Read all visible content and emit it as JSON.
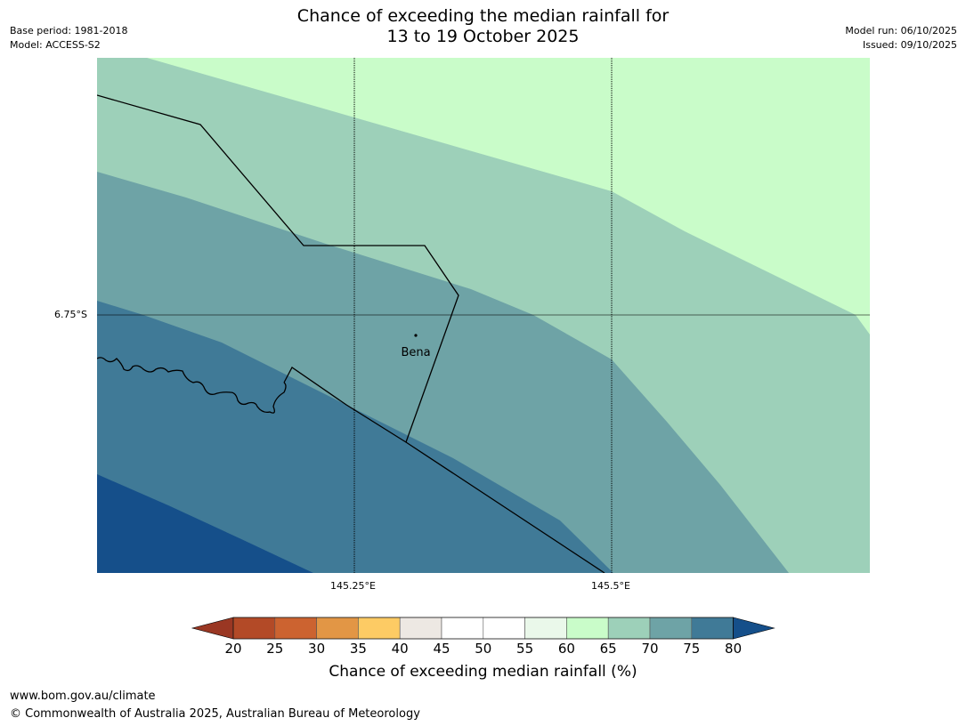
{
  "title": {
    "line1": "Chance of exceeding the median rainfall for",
    "line2": "13 to 19 October 2025"
  },
  "meta": {
    "base_period": "Base period: 1981-2018",
    "model": "Model: ACCESS-S2",
    "model_run": "Model run: 06/10/2025",
    "issued": "Issued: 09/10/2025"
  },
  "map": {
    "lat_label": "6.75°S",
    "lon_labels": [
      "145.25°E",
      "145.5°E"
    ],
    "place": {
      "name": "Bena"
    },
    "colors": {
      "c60_65": "#c9fcc9",
      "c65_70": "#9dd0b9",
      "c70_75": "#6ea3a6",
      "c75_80": "#407a97",
      "c80plus": "#154f8a",
      "gridline": "#000000"
    }
  },
  "colorbar": {
    "ticks": [
      "20",
      "25",
      "30",
      "35",
      "40",
      "45",
      "50",
      "55",
      "60",
      "65",
      "70",
      "75",
      "80"
    ],
    "under_color": "#9a3723",
    "over_color": "#154f8a",
    "colors": [
      "#b34a27",
      "#cc6330",
      "#e29645",
      "#fdcb64",
      "#ede8e3",
      "#ffffff",
      "#ffffff",
      "#eaf8ea",
      "#c9fcc9",
      "#9dd0b9",
      "#6ea3a6",
      "#407a97"
    ],
    "label": "Chance of exceeding median rainfall (%)"
  },
  "footer": {
    "url": "www.bom.gov.au/climate",
    "copyright": "© Commonwealth of Australia 2025, Australian Bureau of Meteorology"
  }
}
